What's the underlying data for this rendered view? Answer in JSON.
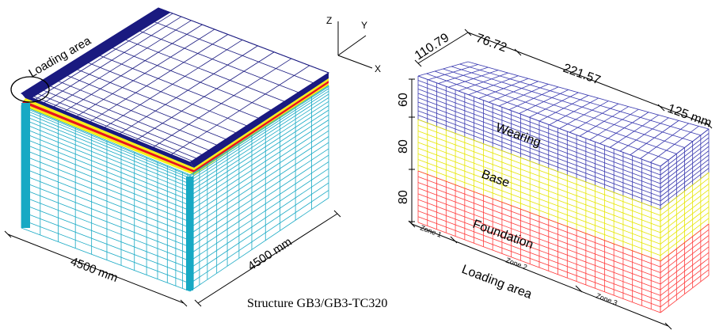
{
  "caption": "Structure GB3/GB3-TC320",
  "left_model": {
    "loading_area_label": "Loading area",
    "dim_left": "4500 mm",
    "dim_right": "4500 mm"
  },
  "axes": {
    "z": "Z",
    "y": "Y",
    "x": "X"
  },
  "right_model": {
    "top_dims": [
      "110.79",
      "76.72",
      "221.57",
      "125 mm"
    ],
    "side_dims": [
      "60",
      "80",
      "80"
    ],
    "layers": [
      "Wearing",
      "Base",
      "Foundation"
    ],
    "zones": [
      "Zone 1",
      "Zone 2",
      "Zone 3"
    ],
    "loading_area_label": "Loading area"
  },
  "colors": {
    "top_mesh": "#1a1a80",
    "top_band": "#1a1a80",
    "side_mesh": "#17a9c4",
    "red_band": "#e8141b",
    "yellow_band": "#f5ef14",
    "wearing": "#3a3ab0",
    "base": "#e6e600",
    "foundation": "#ff3b3b"
  }
}
